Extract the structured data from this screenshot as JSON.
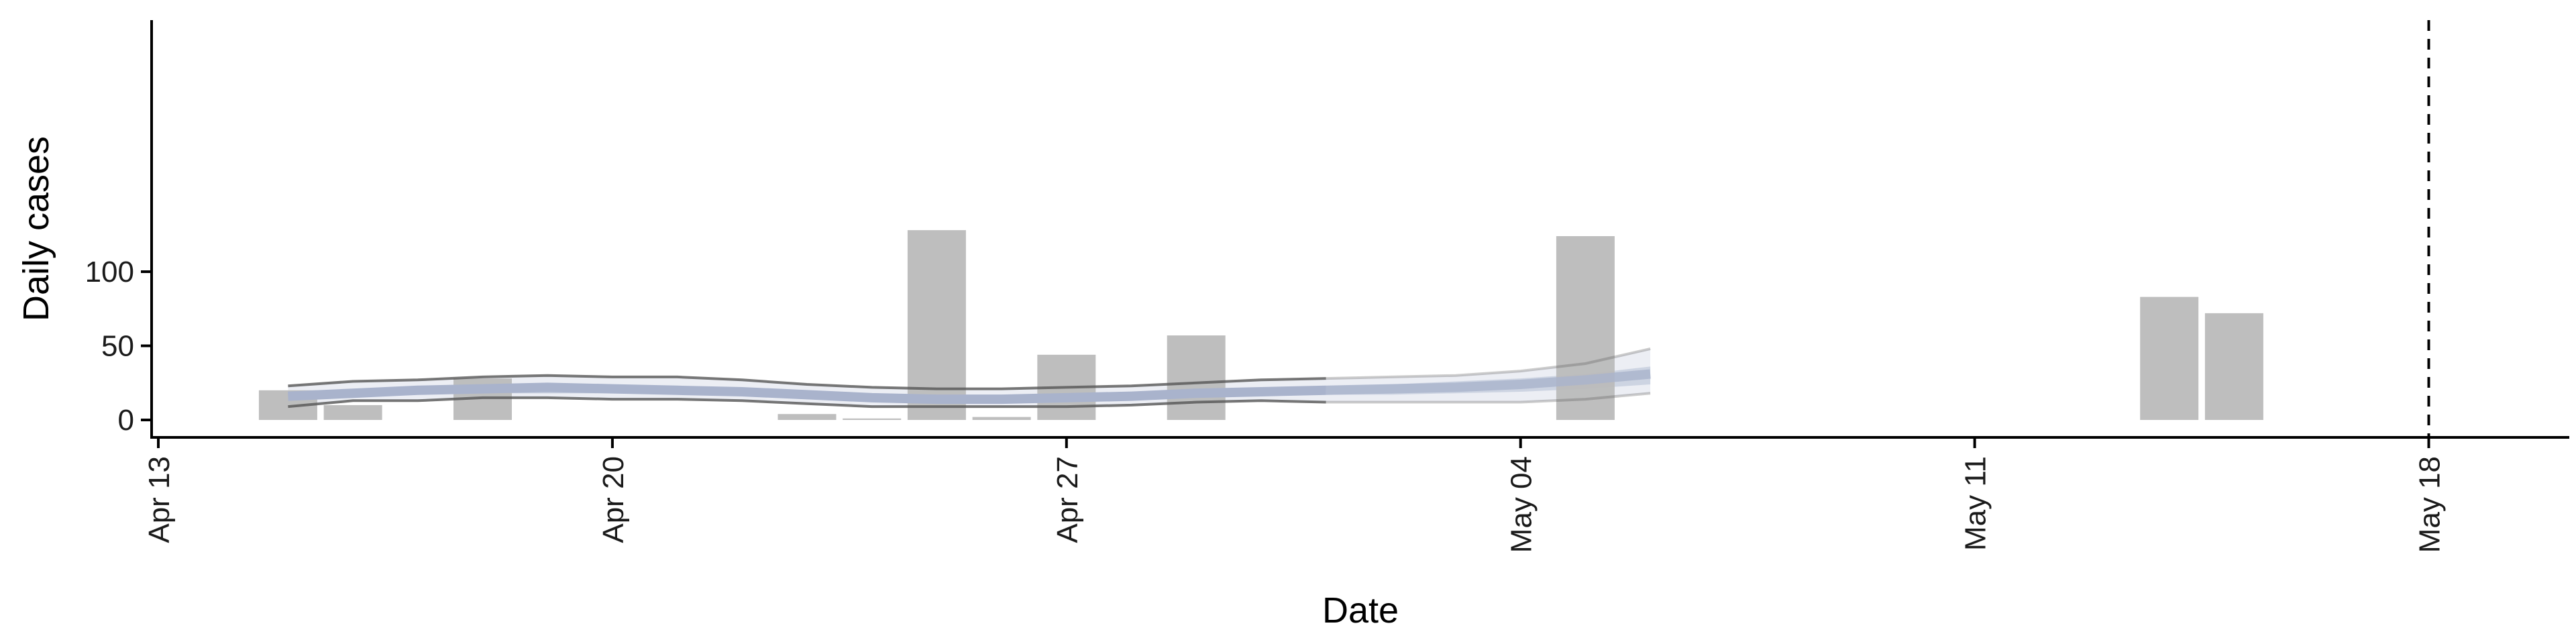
{
  "chart_data": {
    "type": "bar",
    "xlabel": "Date",
    "ylabel": "Daily cases",
    "x_ticks": [
      "Apr 13",
      "Apr 20",
      "Apr 27",
      "May 04",
      "May 11",
      "May 18"
    ],
    "x_tick_dates": [
      "2020-04-13",
      "2020-04-20",
      "2020-04-27",
      "2020-05-04",
      "2020-05-11",
      "2020-05-18"
    ],
    "y_ticks": [
      0,
      50,
      100
    ],
    "ylim": [
      -5,
      140
    ],
    "xlim": [
      "2020-04-13",
      "2020-05-20"
    ],
    "grid": false,
    "colors": {
      "bars": "#bababa",
      "inner_band": "#c3cbdc",
      "outer_band": "#eceef4",
      "interval_line": "#555555",
      "median_line": "#a9b3cc",
      "reference_line": "#000000"
    },
    "series": [
      {
        "type": "bar",
        "dates": [
          "2020-04-15",
          "2020-04-16",
          "2020-04-18",
          "2020-04-23",
          "2020-04-24",
          "2020-04-25",
          "2020-04-26",
          "2020-04-27",
          "2020-04-29",
          "2020-05-05",
          "2020-05-14",
          "2020-05-15"
        ],
        "values": [
          20,
          10,
          28,
          4,
          1,
          128,
          2,
          44,
          57,
          124,
          83,
          72
        ]
      },
      {
        "type": "band",
        "dates": [
          "2020-04-15",
          "2020-04-16",
          "2020-04-17",
          "2020-04-18",
          "2020-04-19",
          "2020-04-20",
          "2020-04-21",
          "2020-04-22",
          "2020-04-23",
          "2020-04-24",
          "2020-04-25",
          "2020-04-26",
          "2020-04-27",
          "2020-04-28",
          "2020-04-29",
          "2020-04-30",
          "2020-05-01",
          "2020-05-02",
          "2020-05-03",
          "2020-05-04",
          "2020-05-05",
          "2020-05-06"
        ],
        "median": [
          16,
          18,
          20,
          21,
          22,
          21,
          20,
          19,
          17,
          15,
          14,
          14,
          15,
          16,
          18,
          19,
          20,
          21,
          22,
          24,
          27,
          31
        ],
        "lower_90": [
          9,
          13,
          13,
          15,
          15,
          14,
          14,
          13,
          11,
          9,
          9,
          9,
          9,
          10,
          12,
          13,
          12,
          12,
          12,
          12,
          14,
          18
        ],
        "upper_90": [
          23,
          26,
          27,
          29,
          30,
          29,
          29,
          27,
          24,
          22,
          21,
          21,
          22,
          23,
          25,
          27,
          28,
          29,
          30,
          33,
          38,
          48
        ],
        "lower_50": [
          13,
          15,
          17,
          18,
          18,
          18,
          17,
          16,
          14,
          12,
          12,
          12,
          12,
          13,
          15,
          16,
          17,
          17,
          18,
          19,
          21,
          24
        ],
        "upper_50": [
          19,
          21,
          23,
          24,
          25,
          24,
          23,
          22,
          20,
          18,
          17,
          17,
          18,
          19,
          21,
          22,
          23,
          24,
          26,
          28,
          31,
          36
        ]
      }
    ],
    "reference_line": {
      "date": "2020-05-18",
      "style": "dashed"
    }
  }
}
